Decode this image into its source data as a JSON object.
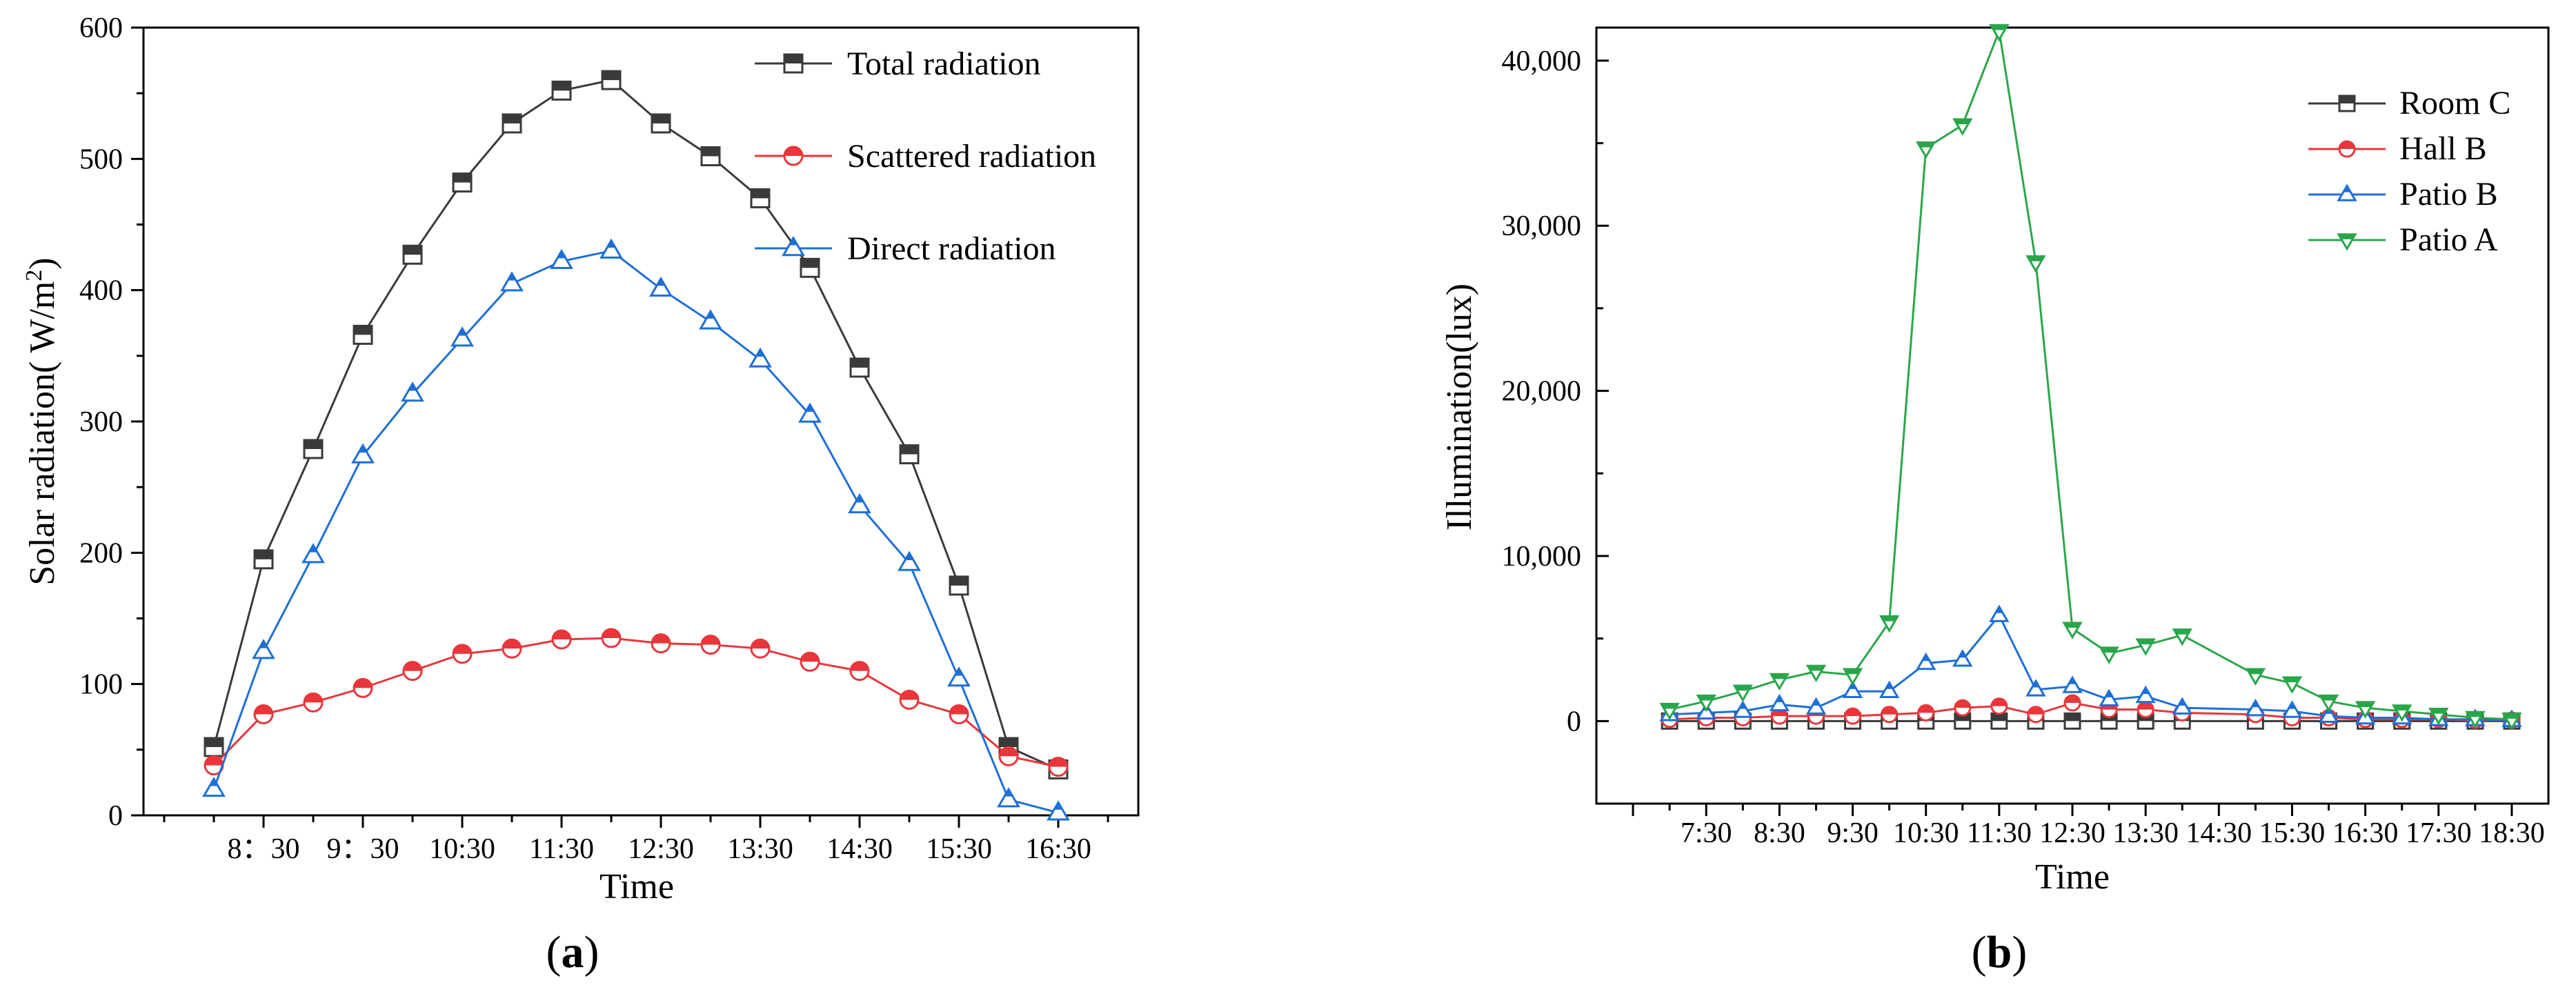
{
  "chart_data": [
    {
      "type": "line",
      "caption": "(a)",
      "caption_open": "(",
      "caption_letter": "a",
      "caption_close": ")",
      "xlabel": "Time",
      "ylabel": "Solar radiation( W/m²)",
      "ylim": [
        0,
        600
      ],
      "yticks": [
        "0",
        "100",
        "200",
        "300",
        "400",
        "500",
        "600"
      ],
      "xticks": [
        "8：30",
        "9：30",
        "10:30",
        "11:30",
        "12:30",
        "13:30",
        "14:30",
        "15:30",
        "16:30"
      ],
      "x": [
        "8:00",
        "8:30",
        "9:00",
        "9:30",
        "10:00",
        "10:30",
        "11:00",
        "11:30",
        "12:00",
        "12:30",
        "13:00",
        "13:30",
        "14:00",
        "14:30",
        "15:00",
        "15:30",
        "16:00",
        "16:30"
      ],
      "series": [
        {
          "name": "Total radiation",
          "color": "#3a3a3a",
          "marker": "square",
          "values": [
            52,
            195,
            279,
            366,
            427,
            482,
            527,
            552,
            560,
            527,
            502,
            470,
            417,
            341,
            275,
            175,
            52,
            35
          ]
        },
        {
          "name": "Scattered radiation",
          "color": "#e8363a",
          "marker": "circle",
          "values": [
            38,
            77,
            86,
            97,
            110,
            123,
            127,
            134,
            135,
            131,
            130,
            127,
            117,
            110,
            88,
            77,
            45,
            37
          ]
        },
        {
          "name": "Direct radiation",
          "color": "#1d6fd6",
          "marker": "triangle-up",
          "values": [
            20,
            125,
            198,
            274,
            321,
            363,
            405,
            422,
            430,
            401,
            376,
            347,
            305,
            236,
            192,
            104,
            12,
            2
          ]
        }
      ],
      "legend": "top-right"
    },
    {
      "type": "line",
      "caption": "(b)",
      "caption_open": "(",
      "caption_letter": "b",
      "caption_close": ")",
      "xlabel": "Time",
      "ylabel": "Illumination(lux)",
      "ylim": [
        -5000,
        42000
      ],
      "yticks": [
        "0",
        "10,000",
        "20,000",
        "30,000",
        "40,000"
      ],
      "xticks": [
        "7:30",
        "8:30",
        "9:30",
        "10:30",
        "11:30",
        "12:30",
        "13:30",
        "14:30",
        "15:30",
        "16:30",
        "17:30",
        "18:30"
      ],
      "x_range_hours": [
        6.0,
        19.0
      ],
      "series": [
        {
          "name": "Room C",
          "color": "#3a3a3a",
          "marker": "square",
          "x_hours": [
            7.0,
            7.5,
            8.0,
            8.5,
            9.0,
            9.5,
            10.0,
            10.5,
            11.0,
            11.5,
            12.0,
            12.5,
            13.0,
            13.5,
            14.0,
            15.0,
            15.5,
            16.0,
            16.5,
            17.0,
            17.5,
            18.0,
            18.5
          ],
          "values": [
            0,
            0,
            0,
            0,
            0,
            0,
            0,
            0,
            0,
            0,
            0,
            0,
            0,
            0,
            0,
            0,
            0,
            0,
            0,
            0,
            0,
            0,
            0
          ]
        },
        {
          "name": "Hall B",
          "color": "#e8363a",
          "marker": "circle",
          "x_hours": [
            7.0,
            7.5,
            8.0,
            8.5,
            9.0,
            9.5,
            10.0,
            10.5,
            11.0,
            11.5,
            12.0,
            12.5,
            13.0,
            13.5,
            14.0,
            15.0,
            15.5,
            16.0,
            16.5,
            17.0,
            17.5,
            18.0,
            18.5
          ],
          "values": [
            100,
            200,
            200,
            300,
            300,
            300,
            400,
            500,
            800,
            900,
            400,
            1100,
            700,
            700,
            500,
            400,
            200,
            200,
            100,
            100,
            100,
            50,
            50
          ]
        },
        {
          "name": "Patio B",
          "color": "#1d6fd6",
          "marker": "triangle-up",
          "x_hours": [
            7.0,
            7.5,
            8.0,
            8.5,
            9.0,
            9.5,
            10.0,
            10.5,
            11.0,
            11.5,
            12.0,
            12.5,
            13.0,
            13.5,
            14.0,
            15.0,
            15.5,
            16.0,
            16.5,
            17.0,
            17.5,
            18.0,
            18.5
          ],
          "values": [
            400,
            500,
            600,
            1000,
            800,
            1800,
            1800,
            3500,
            3700,
            6400,
            1900,
            2100,
            1300,
            1500,
            800,
            700,
            600,
            300,
            200,
            200,
            100,
            100,
            50
          ]
        },
        {
          "name": "Patio A",
          "color": "#2aa64a",
          "marker": "triangle-down",
          "x_hours": [
            7.0,
            7.5,
            8.0,
            8.5,
            9.0,
            9.5,
            10.0,
            10.5,
            11.0,
            11.5,
            12.0,
            12.5,
            13.0,
            13.5,
            14.0,
            15.0,
            15.5,
            16.0,
            16.5,
            17.0,
            17.5,
            18.0,
            18.5
          ],
          "values": [
            700,
            1200,
            1800,
            2500,
            3000,
            2800,
            6000,
            34700,
            36100,
            41800,
            27800,
            5600,
            4100,
            4600,
            5200,
            2800,
            2300,
            1200,
            800,
            600,
            400,
            200,
            100
          ]
        }
      ],
      "legend": "top-right"
    }
  ]
}
